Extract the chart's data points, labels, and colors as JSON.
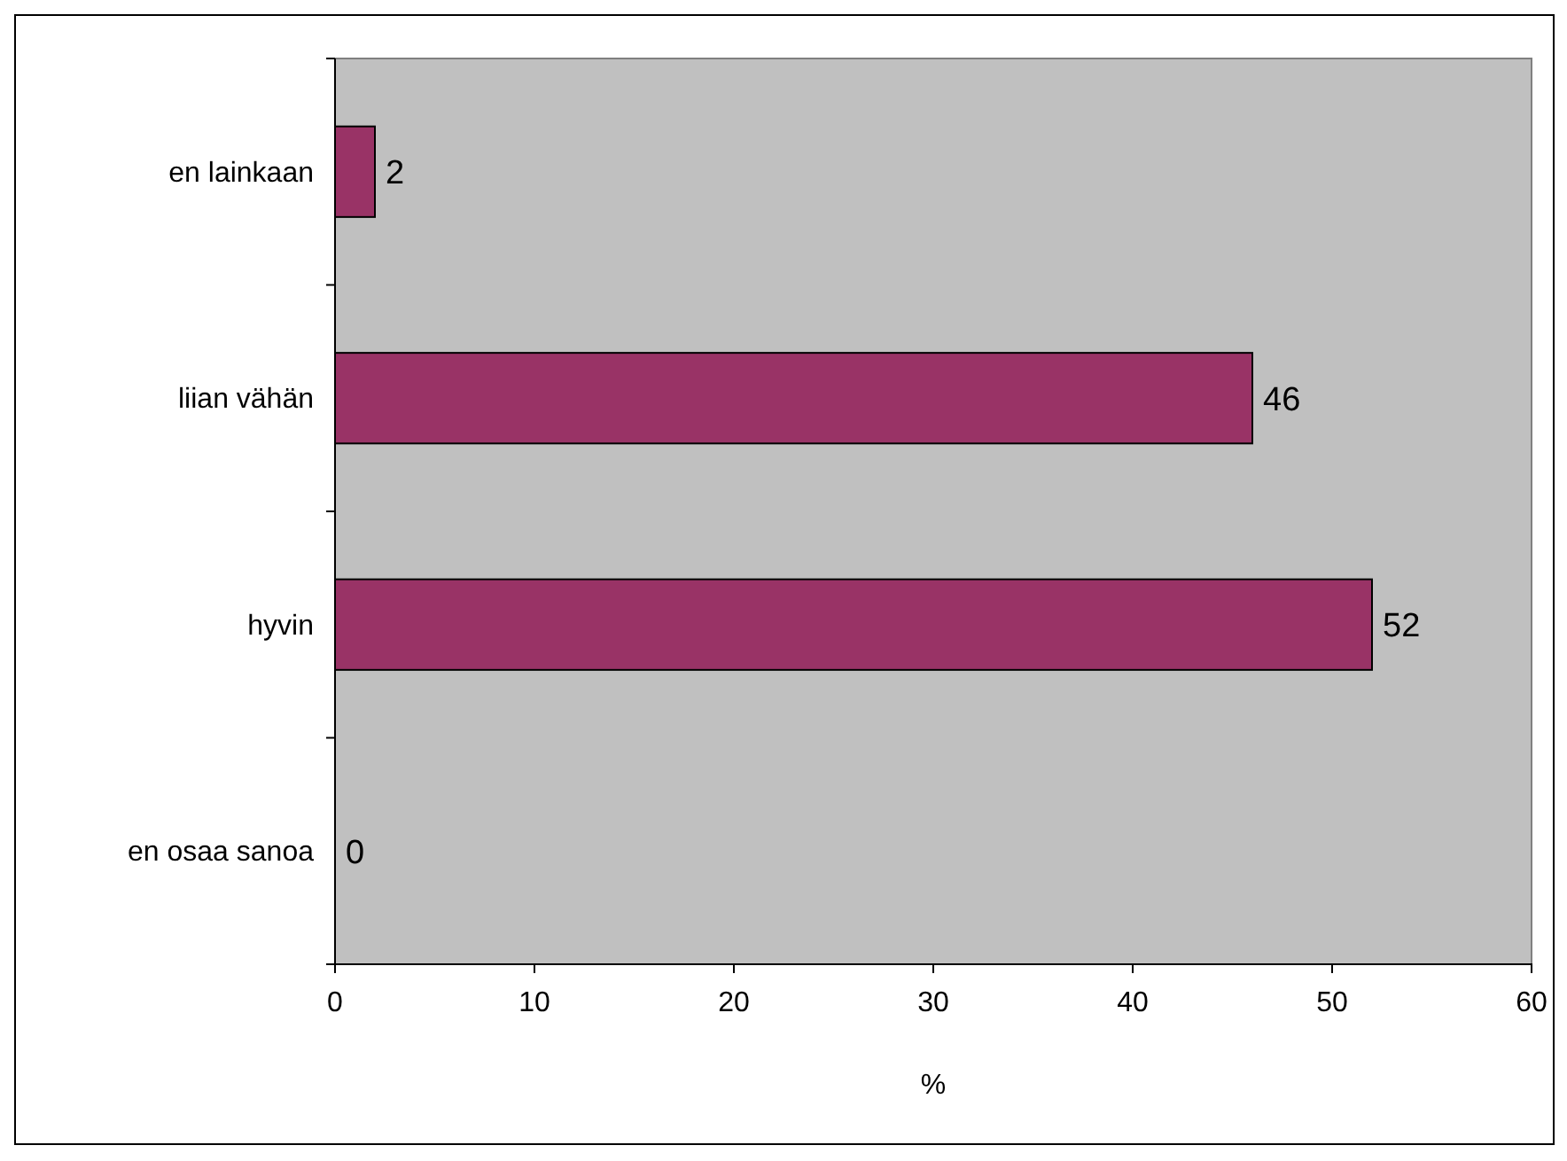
{
  "chart_data": {
    "type": "bar",
    "orientation": "horizontal",
    "categories": [
      "en lainkaan",
      "liian vähän",
      "hyvin",
      "en osaa sanoa"
    ],
    "values": [
      2,
      46,
      52,
      0
    ],
    "color": "#993366",
    "xlim": [
      0,
      60
    ],
    "xticks": [
      0,
      10,
      20,
      30,
      40,
      50,
      60
    ],
    "xlabel": "%",
    "data_labels": true,
    "grid": false
  }
}
